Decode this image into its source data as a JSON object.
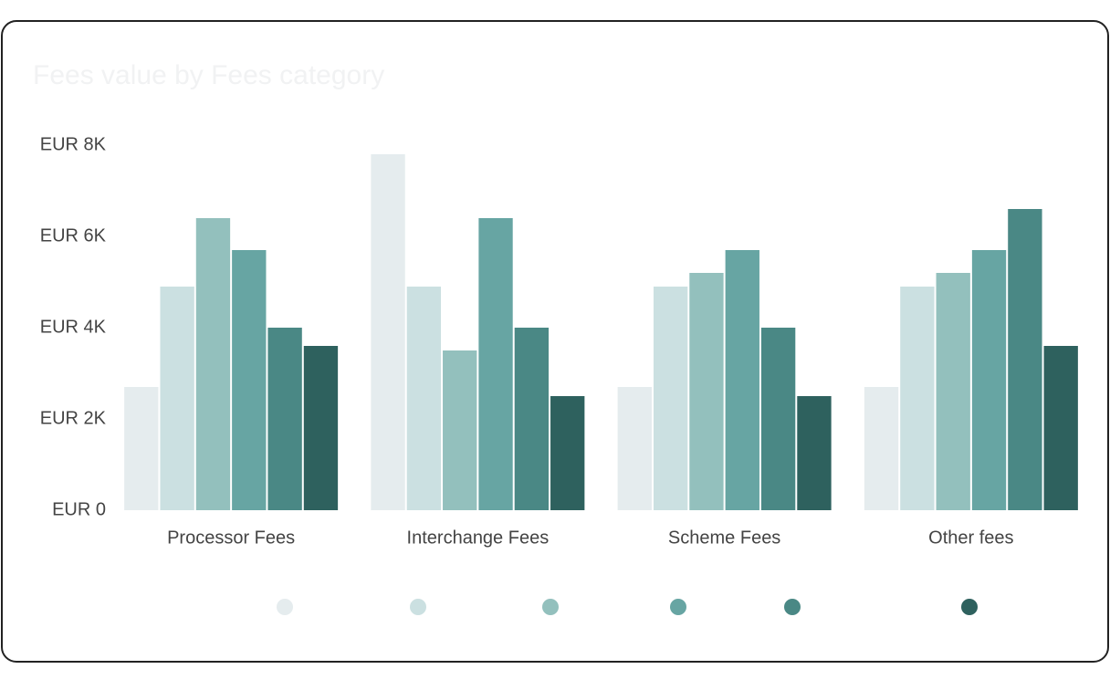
{
  "chart_data": {
    "type": "bar",
    "title": "Fees value by Fees category",
    "categories": [
      "Processor Fees",
      "Interchange Fees",
      "Scheme Fees",
      "Other fees"
    ],
    "series": [
      {
        "color": "#e5ecee",
        "values": [
          2700,
          7800,
          2700,
          2700
        ]
      },
      {
        "color": "#cbe0e1",
        "values": [
          4900,
          4900,
          4900,
          4900
        ]
      },
      {
        "color": "#93c0bd",
        "values": [
          6400,
          3500,
          5200,
          5200
        ]
      },
      {
        "color": "#67a5a3",
        "values": [
          5700,
          6400,
          5700,
          5700
        ]
      },
      {
        "color": "#4a8885",
        "values": [
          4000,
          4000,
          4000,
          6600
        ]
      },
      {
        "color": "#2e615e",
        "values": [
          3600,
          2500,
          2500,
          3600
        ]
      }
    ],
    "ylim": [
      0,
      8000
    ],
    "yticks": [
      {
        "value": 0,
        "label": "EUR 0"
      },
      {
        "value": 2000,
        "label": "EUR 2K"
      },
      {
        "value": 4000,
        "label": "EUR 4K"
      },
      {
        "value": 6000,
        "label": "EUR 6K"
      },
      {
        "value": 8000,
        "label": "EUR 8K"
      }
    ],
    "grid": false
  }
}
